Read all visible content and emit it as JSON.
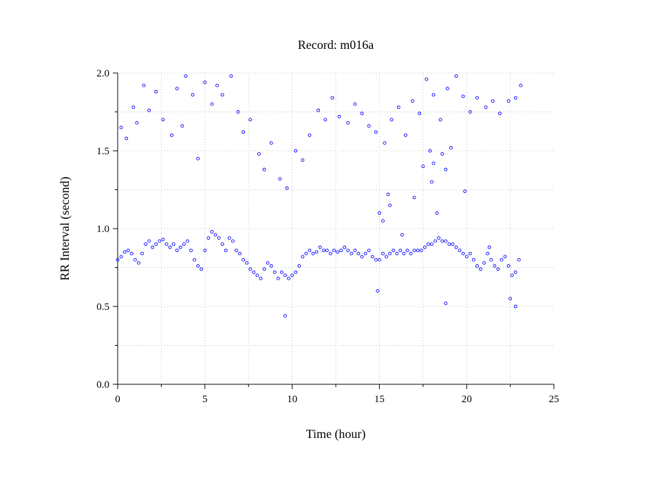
{
  "chart_data": {
    "type": "scatter",
    "title": "Record:  m016a",
    "xlabel": "Time (hour)",
    "ylabel": "RR Interval (second)",
    "xlim": [
      0,
      25
    ],
    "ylim": [
      0,
      2
    ],
    "x_ticks": [
      0,
      5,
      10,
      15,
      20,
      25
    ],
    "x_tick_labels": [
      "0",
      "5",
      "10",
      "15",
      "20",
      "25"
    ],
    "x_minor_ticks": [
      2.5,
      7.5,
      12.5,
      17.5,
      22.5
    ],
    "y_ticks": [
      0,
      0.5,
      1,
      1.5,
      2
    ],
    "y_tick_labels": [
      "0.0",
      "0.5",
      "1.0",
      "1.5",
      "2.0"
    ],
    "y_minor_ticks": [
      0.25,
      0.75,
      1.25,
      1.75
    ],
    "grid": true,
    "legend": "none",
    "marker": "open-circle",
    "color": "#0000ff",
    "series": [
      {
        "x": [
          0.0,
          0.2,
          0.4,
          0.6,
          0.8,
          1.0,
          1.2,
          1.4,
          1.6,
          1.8,
          2.0,
          2.2,
          2.4,
          2.6,
          2.8,
          3.0,
          3.2,
          3.4,
          3.6,
          3.8,
          4.0,
          4.2,
          4.4,
          4.6,
          4.8,
          5.0,
          5.2,
          5.4,
          5.6,
          5.8,
          6.0,
          6.2,
          6.4,
          6.6,
          6.8,
          7.0,
          7.2,
          7.4,
          7.6,
          7.8,
          8.0,
          8.2,
          8.4,
          8.6,
          8.8,
          9.0,
          9.2,
          9.4,
          9.6,
          9.8,
          10.0,
          10.2,
          10.4,
          10.6,
          10.8,
          11.0,
          11.2,
          11.4,
          11.6,
          11.8,
          12.0,
          12.2,
          12.4,
          12.6,
          12.8,
          13.0,
          13.2,
          13.4,
          13.6,
          13.8,
          14.0,
          14.2,
          14.4,
          14.6,
          14.8,
          15.0,
          15.2,
          15.4,
          15.6,
          15.8,
          16.0,
          16.2,
          16.4,
          16.6,
          16.8,
          17.0,
          17.2,
          17.4,
          17.6,
          17.8,
          18.0,
          18.2,
          18.4,
          18.6,
          18.8,
          19.0,
          19.2,
          19.4,
          19.6,
          19.8,
          20.0,
          20.2,
          20.4,
          20.6,
          20.8,
          21.0,
          21.2,
          21.4,
          21.6,
          21.8,
          22.0,
          22.2,
          22.4,
          22.6,
          22.8,
          23.0
        ],
        "y": [
          0.8,
          0.82,
          0.85,
          0.86,
          0.84,
          0.8,
          0.78,
          0.84,
          0.9,
          0.92,
          0.88,
          0.9,
          0.92,
          0.93,
          0.9,
          0.88,
          0.9,
          0.86,
          0.88,
          0.9,
          0.92,
          0.86,
          0.8,
          0.76,
          0.74,
          0.86,
          0.94,
          0.98,
          0.96,
          0.94,
          0.9,
          0.86,
          0.94,
          0.92,
          0.86,
          0.84,
          0.8,
          0.78,
          0.74,
          0.72,
          0.7,
          0.68,
          0.74,
          0.78,
          0.76,
          0.72,
          0.68,
          0.72,
          0.7,
          0.68,
          0.7,
          0.72,
          0.76,
          0.82,
          0.84,
          0.86,
          0.84,
          0.85,
          0.88,
          0.86,
          0.86,
          0.84,
          0.86,
          0.85,
          0.86,
          0.88,
          0.86,
          0.84,
          0.86,
          0.84,
          0.82,
          0.84,
          0.86,
          0.82,
          0.8,
          0.8,
          0.84,
          0.82,
          0.84,
          0.86,
          0.84,
          0.86,
          0.84,
          0.86,
          0.84,
          0.86,
          0.86,
          0.86,
          0.88,
          0.9,
          0.9,
          0.92,
          0.94,
          0.92,
          0.92,
          0.9,
          0.9,
          0.88,
          0.86,
          0.84,
          0.82,
          0.84,
          0.8,
          0.76,
          0.74,
          0.78,
          0.84,
          0.8,
          0.76,
          0.74,
          0.8,
          0.82,
          0.76,
          0.7,
          0.72,
          0.8
        ]
      },
      {
        "x": [
          0.2,
          0.5,
          0.9,
          1.1,
          1.5,
          1.8,
          2.2,
          2.6,
          3.1,
          3.4,
          3.7,
          3.9,
          4.3,
          4.6,
          5.0,
          5.4,
          5.7,
          6.0,
          6.5,
          6.9,
          7.2,
          7.6,
          8.1,
          8.4,
          8.8,
          9.3,
          9.7,
          10.2,
          10.6,
          11.0,
          11.5,
          11.9,
          12.3,
          12.7,
          13.2,
          13.6,
          14.0,
          14.4,
          14.8,
          15.3,
          15.7,
          16.1,
          16.5,
          16.9,
          17.3,
          17.7,
          18.1,
          18.5,
          18.9,
          19.4,
          19.8,
          20.2,
          20.6,
          21.1,
          21.5,
          21.9,
          22.4,
          22.8,
          23.1
        ],
        "y": [
          1.65,
          1.58,
          1.78,
          1.68,
          1.92,
          1.76,
          1.88,
          1.7,
          1.6,
          1.9,
          1.66,
          1.98,
          1.86,
          1.45,
          1.94,
          1.8,
          1.92,
          1.86,
          1.98,
          1.75,
          1.62,
          1.7,
          1.48,
          1.38,
          1.55,
          1.32,
          1.26,
          1.5,
          1.44,
          1.6,
          1.76,
          1.7,
          1.84,
          1.72,
          1.68,
          1.8,
          1.74,
          1.66,
          1.62,
          1.55,
          1.7,
          1.78,
          1.6,
          1.82,
          1.74,
          1.96,
          1.86,
          1.7,
          1.9,
          1.98,
          1.85,
          1.75,
          1.84,
          1.78,
          1.82,
          1.74,
          1.82,
          1.84,
          1.92
        ]
      },
      {
        "x": [
          15.0,
          15.2,
          15.5,
          15.6,
          16.3,
          17.0,
          17.5,
          17.9,
          18.0,
          18.1,
          18.3,
          18.6,
          18.8,
          19.1,
          19.9,
          21.3,
          22.5,
          22.8,
          9.6,
          14.9,
          18.8
        ],
        "y": [
          1.1,
          1.05,
          1.22,
          1.15,
          0.96,
          1.2,
          1.4,
          1.5,
          1.3,
          1.42,
          1.1,
          1.48,
          1.38,
          1.52,
          1.24,
          0.88,
          0.55,
          0.5,
          0.44,
          0.6,
          0.52
        ]
      }
    ]
  }
}
